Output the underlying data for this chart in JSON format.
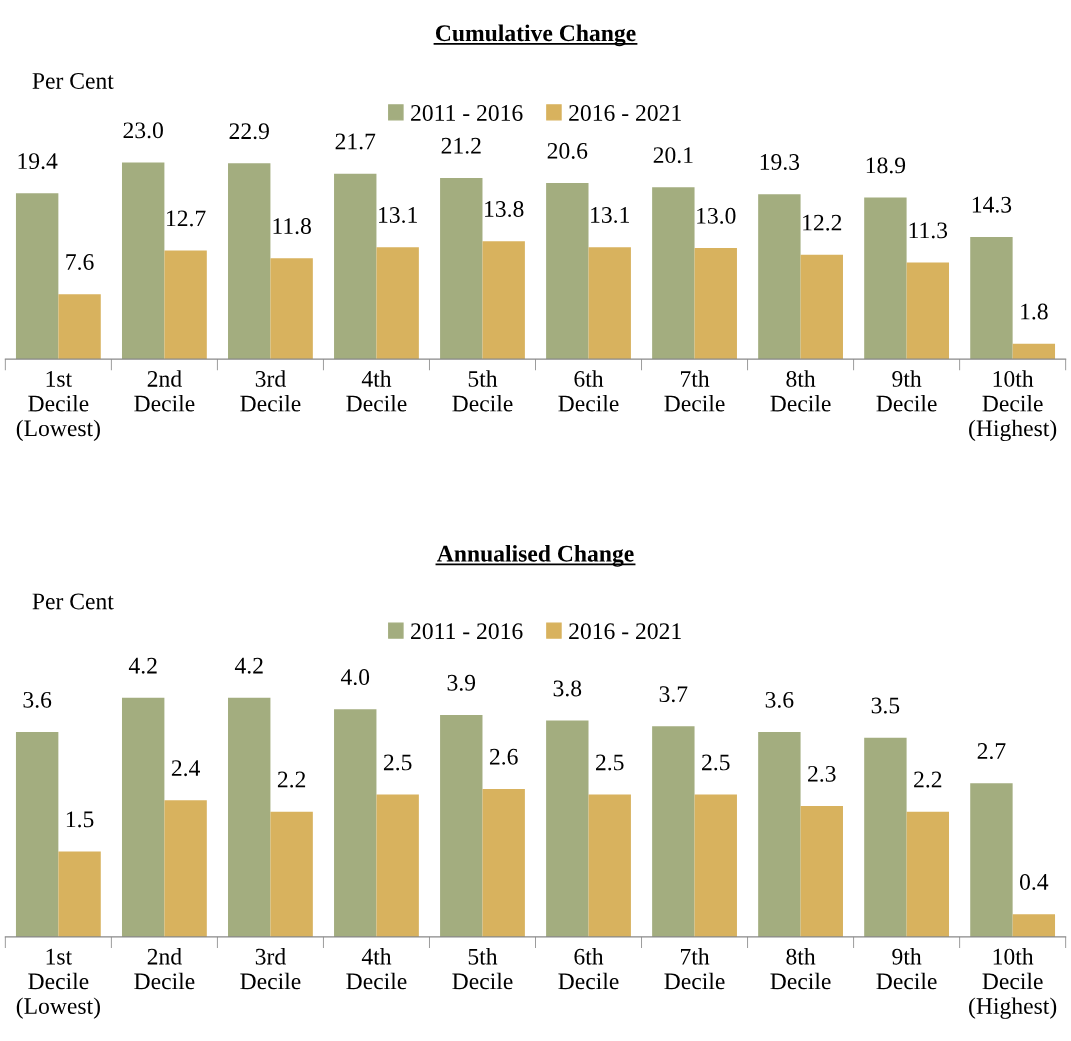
{
  "chart_data": [
    {
      "type": "bar",
      "title": "Cumulative Change",
      "ylabel": "Per Cent",
      "categories": [
        "1st\nDecile\n(Lowest)",
        "2nd\nDecile",
        "3rd\nDecile",
        "4th\nDecile",
        "5th\nDecile",
        "6th\nDecile",
        "7th\nDecile",
        "8th\nDecile",
        "9th\nDecile",
        "10th\nDecile\n(Highest)"
      ],
      "series": [
        {
          "name": "2011 - 2016",
          "color": "#a3ad7f",
          "values": [
            19.4,
            23.0,
            22.9,
            21.7,
            21.2,
            20.6,
            20.1,
            19.3,
            18.9,
            14.3
          ],
          "value_labels": [
            "19.4",
            "23.0",
            "22.9",
            "21.7",
            "21.2",
            "20.6",
            "20.1",
            "19.3",
            "18.9",
            "14.3"
          ]
        },
        {
          "name": "2016 - 2021",
          "color": "#d8b25e",
          "values": [
            7.6,
            12.7,
            11.8,
            13.1,
            13.8,
            13.1,
            13.0,
            12.2,
            11.3,
            1.8
          ],
          "value_labels": [
            "7.6",
            "12.7",
            "11.8",
            "13.1",
            "13.8",
            "13.1",
            "13.0",
            "12.2",
            "11.3",
            "1.8"
          ]
        }
      ],
      "legend": "top",
      "tick_labels": "x"
    },
    {
      "type": "bar",
      "title": "Annualised Change",
      "ylabel": "Per Cent",
      "categories": [
        "1st\nDecile\n(Lowest)",
        "2nd\nDecile",
        "3rd\nDecile",
        "4th\nDecile",
        "5th\nDecile",
        "6th\nDecile",
        "7th\nDecile",
        "8th\nDecile",
        "9th\nDecile",
        "10th\nDecile\n(Highest)"
      ],
      "series": [
        {
          "name": "2011 - 2016",
          "color": "#a3ad7f",
          "values": [
            3.6,
            4.2,
            4.2,
            4.0,
            3.9,
            3.8,
            3.7,
            3.6,
            3.5,
            2.7
          ],
          "value_labels": [
            "3.6",
            "4.2",
            "4.2",
            "4.0",
            "3.9",
            "3.8",
            "3.7",
            "3.6",
            "3.5",
            "2.7"
          ]
        },
        {
          "name": "2016 - 2021",
          "color": "#d8b25e",
          "values": [
            1.5,
            2.4,
            2.2,
            2.5,
            2.6,
            2.5,
            2.5,
            2.3,
            2.2,
            0.4
          ],
          "value_labels": [
            "1.5",
            "2.4",
            "2.2",
            "2.5",
            "2.6",
            "2.5",
            "2.5",
            "2.3",
            "2.2",
            "0.4"
          ]
        }
      ],
      "legend": "top",
      "tick_labels": "x"
    }
  ]
}
